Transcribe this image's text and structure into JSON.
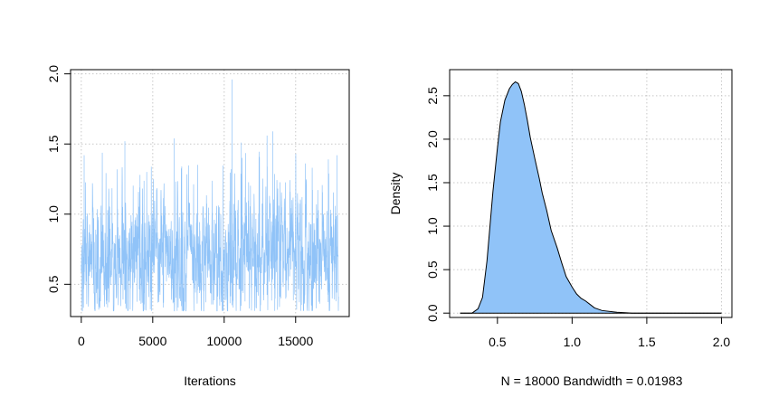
{
  "chart_data": [
    {
      "type": "line",
      "title": "",
      "xlabel": "Iterations",
      "ylabel": "",
      "xlim": [
        -750,
        18750
      ],
      "ylim": [
        0.27,
        2.03
      ],
      "x_ticks": [
        0,
        5000,
        10000,
        15000
      ],
      "x_tick_labels": [
        "0",
        "5000",
        "10000",
        "15000"
      ],
      "y_ticks": [
        0.5,
        1.0,
        1.5,
        2.0
      ],
      "y_tick_labels": [
        "0.5",
        "1.0",
        "1.5",
        "2.0"
      ],
      "grid": true,
      "series": [
        {
          "color": "#90c3f8",
          "iterations": 18000,
          "x_range": [
            0,
            18000
          ],
          "typical_range": [
            0.4,
            1.15
          ],
          "observed_min": 0.31,
          "observed_max": 1.96,
          "spikes": [
            {
              "x": 10550,
              "y": 1.96
            },
            {
              "x": 6500,
              "y": 1.54
            },
            {
              "x": 13400,
              "y": 1.59
            },
            {
              "x": 3050,
              "y": 1.52
            },
            {
              "x": 11200,
              "y": 1.51
            },
            {
              "x": 13000,
              "y": 1.56
            },
            {
              "x": 200,
              "y": 1.42
            },
            {
              "x": 17900,
              "y": 1.42
            },
            {
              "x": 10500,
              "y": 1.32
            }
          ]
        }
      ]
    },
    {
      "type": "area",
      "title": "",
      "xlabel": "N = 18000   Bandwidth = 0.01983",
      "ylabel": "Density",
      "xlim": [
        0.18,
        2.07
      ],
      "ylim": [
        -0.05,
        2.8
      ],
      "x_ticks": [
        0.5,
        1.0,
        1.5,
        2.0
      ],
      "x_tick_labels": [
        "0.5",
        "1.0",
        "1.5",
        "2.0"
      ],
      "y_ticks": [
        0.0,
        0.5,
        1.0,
        1.5,
        2.0,
        2.5
      ],
      "y_tick_labels": [
        "0.0",
        "0.5",
        "1.0",
        "1.5",
        "2.0",
        "2.5"
      ],
      "grid": true,
      "fill_color": "#90c3f8",
      "line_color": "#000000",
      "density_line": {
        "x": [
          0.25,
          2.0
        ],
        "y": 0
      },
      "x": [
        0.25,
        0.33,
        0.37,
        0.4,
        0.43,
        0.45,
        0.47,
        0.5,
        0.52,
        0.55,
        0.58,
        0.6,
        0.62,
        0.64,
        0.66,
        0.68,
        0.7,
        0.72,
        0.75,
        0.78,
        0.8,
        0.83,
        0.86,
        0.9,
        0.93,
        0.96,
        1.0,
        1.03,
        1.06,
        1.09,
        1.12,
        1.15,
        1.2,
        1.3,
        1.37,
        1.4,
        2.0
      ],
      "y": [
        0.0,
        0.0,
        0.05,
        0.18,
        0.6,
        1.0,
        1.4,
        1.9,
        2.2,
        2.45,
        2.58,
        2.63,
        2.66,
        2.64,
        2.55,
        2.4,
        2.22,
        2.02,
        1.78,
        1.55,
        1.38,
        1.18,
        0.95,
        0.75,
        0.58,
        0.42,
        0.3,
        0.22,
        0.17,
        0.14,
        0.1,
        0.06,
        0.03,
        0.01,
        0.003,
        0.0,
        0.0
      ]
    }
  ]
}
